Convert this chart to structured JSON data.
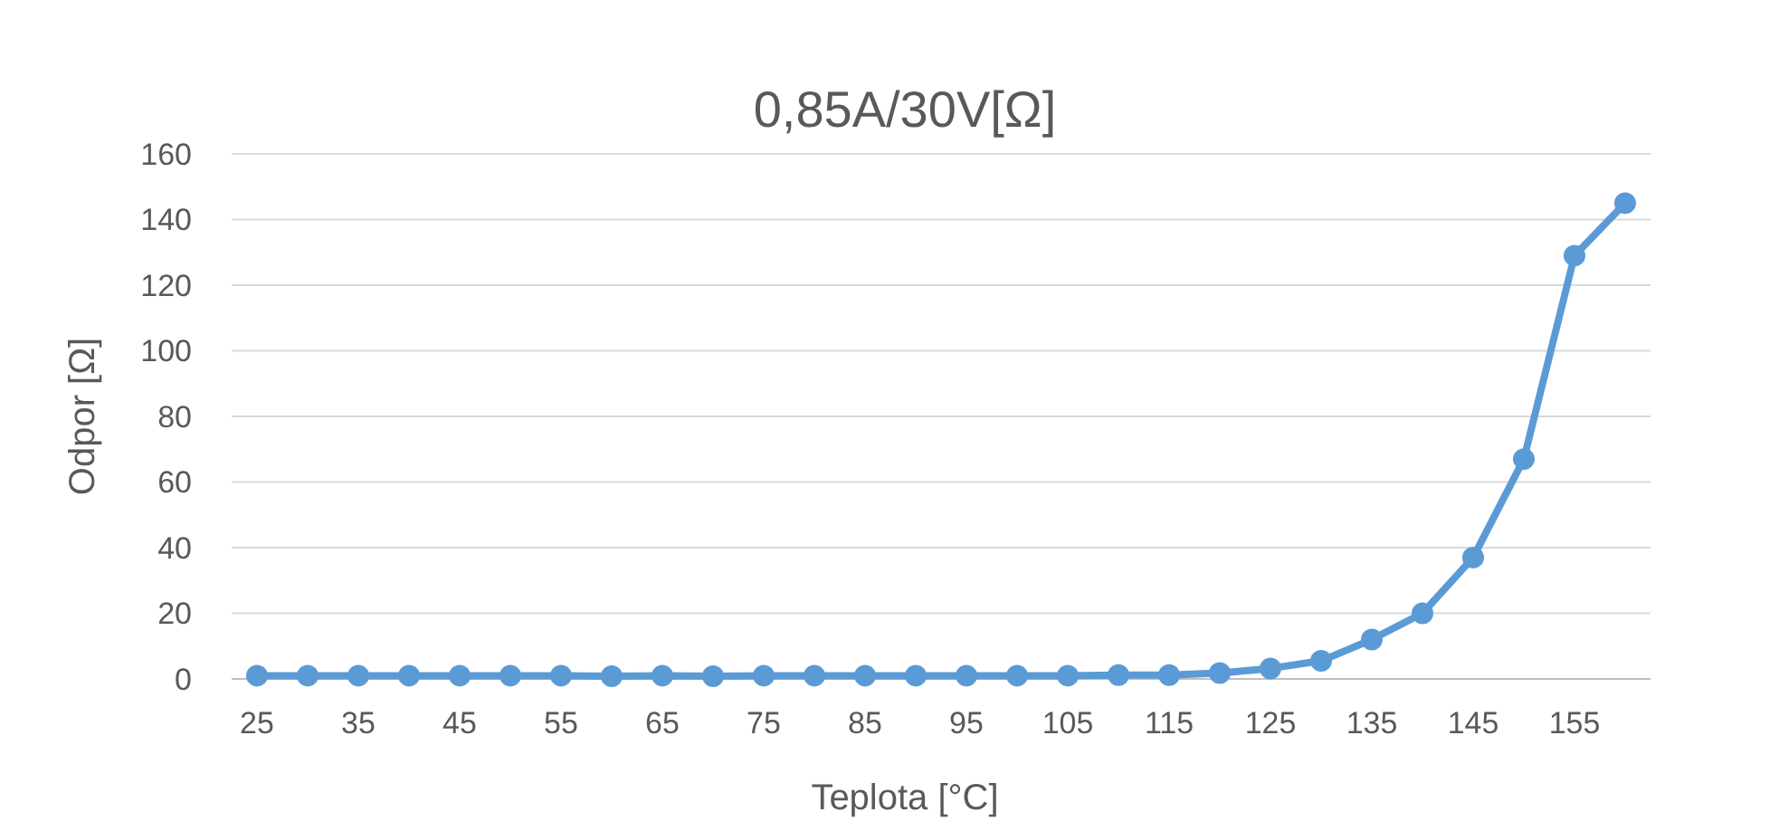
{
  "chart_data": {
    "type": "line",
    "title": "0,85A/30V[Ω]",
    "xlabel": "Teplota [°C]",
    "ylabel": "Odpor [Ω]",
    "categories": [
      "25",
      null,
      "35",
      null,
      "45",
      null,
      "55",
      null,
      "65",
      null,
      "75",
      null,
      "85",
      null,
      "95",
      null,
      "105",
      null,
      "115",
      null,
      "125",
      null,
      "135",
      null,
      "145",
      null,
      "155",
      null
    ],
    "series": [
      {
        "color": "#5b9bd5",
        "values": [
          1,
          1,
          1,
          1,
          1,
          1,
          1,
          0.8,
          1,
          0.8,
          1,
          1,
          1,
          1,
          1,
          1,
          1,
          1.2,
          1.2,
          1.8,
          3.2,
          5.5,
          12,
          20,
          37,
          67,
          129,
          145
        ]
      }
    ],
    "ylim": [
      0,
      160
    ],
    "yticks": [
      0,
      20,
      40,
      60,
      80,
      100,
      120,
      140,
      160
    ],
    "grid": "y",
    "marker": "circle",
    "line_style": "solid"
  }
}
